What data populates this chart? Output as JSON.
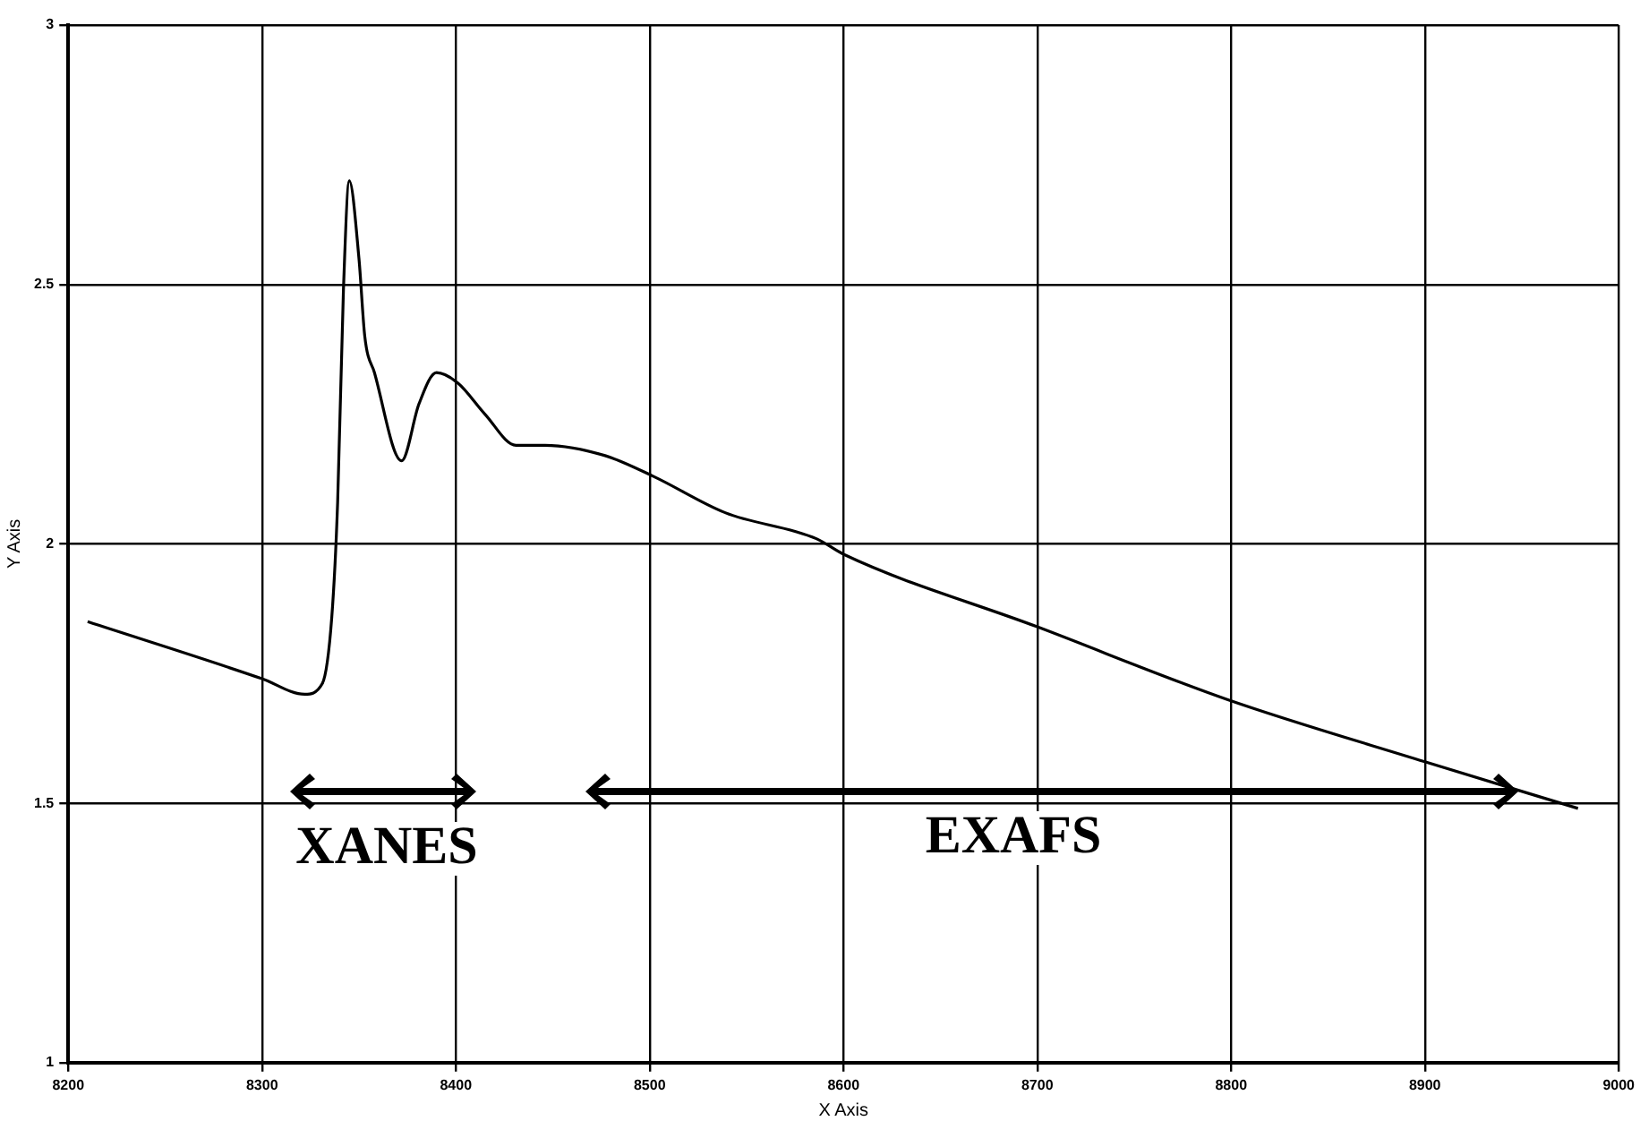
{
  "chart_data": {
    "type": "line",
    "xlabel": "X Axis",
    "ylabel": "Y Axis",
    "xlim": [
      8200,
      9000
    ],
    "xticks": [
      8200,
      8300,
      8400,
      8500,
      8600,
      8700,
      8800,
      8900,
      9000
    ],
    "ylim": [
      1,
      3
    ],
    "yticks": [
      1,
      1.5,
      2,
      2.5,
      3
    ],
    "grid": true,
    "legend": false,
    "marker": "none",
    "line_style": "solid",
    "series": [
      {
        "color": "#000000",
        "x": [
          8210,
          8300,
          8322,
          8331,
          8336,
          8339,
          8342,
          8345,
          8350,
          8353,
          8358,
          8372,
          8381,
          8390,
          8401,
          8415,
          8431,
          8446,
          8477,
          8502,
          8539,
          8586,
          8600,
          8700,
          8798,
          8900,
          8979
        ],
        "values": [
          1.85,
          1.74,
          1.71,
          1.73,
          1.86,
          2.08,
          2.49,
          2.7,
          2.55,
          2.4,
          2.33,
          2.16,
          2.27,
          2.33,
          2.31,
          2.25,
          2.19,
          2.19,
          2.17,
          2.13,
          2.06,
          2.01,
          1.98,
          1.84,
          1.7,
          1.58,
          1.49
        ]
      }
    ],
    "annotations": [
      "XANES",
      "EXAFS"
    ]
  }
}
